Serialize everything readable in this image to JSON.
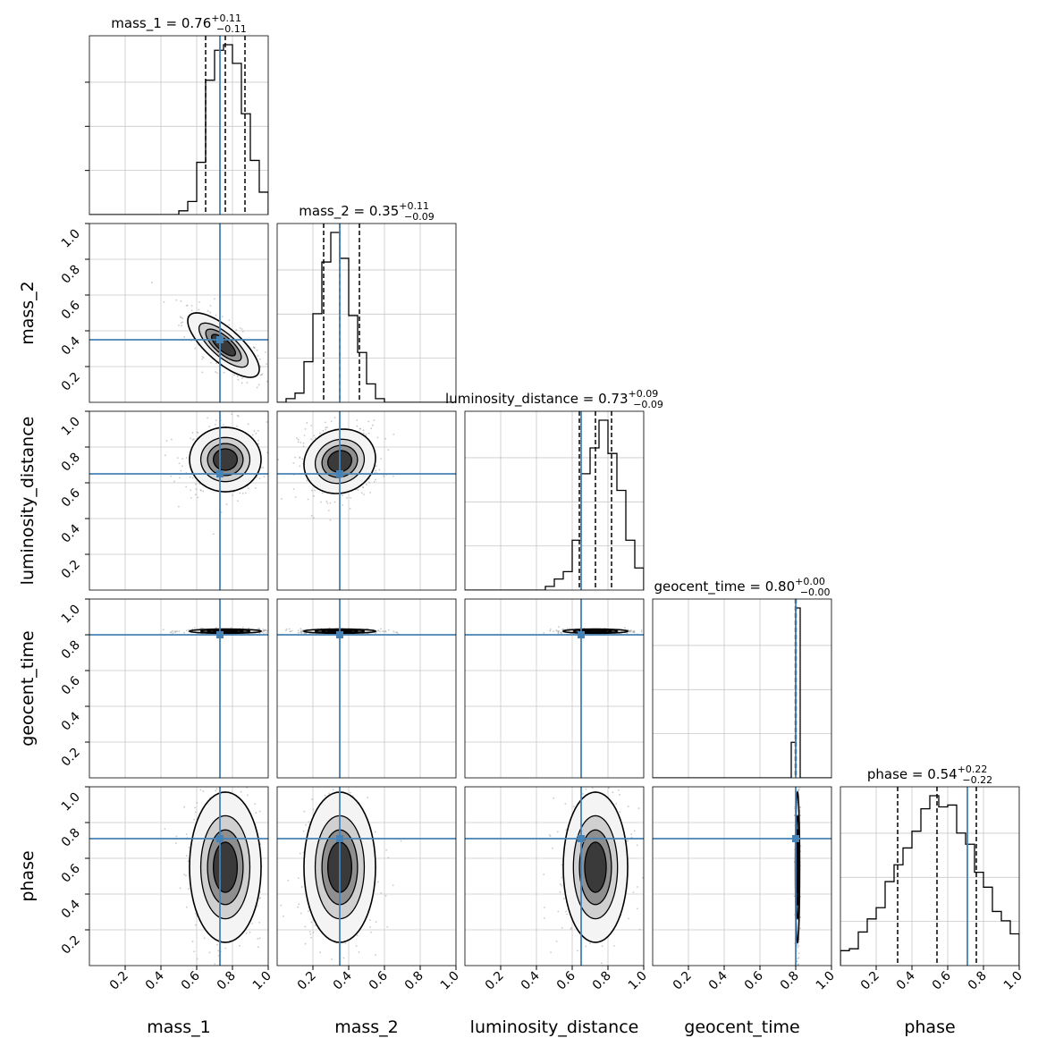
{
  "chart_data": {
    "type": "corner",
    "grid": true,
    "parameters": [
      "mass_1",
      "mass_2",
      "luminosity_distance",
      "geocent_time",
      "phase"
    ],
    "axis_range": [
      0,
      1
    ],
    "tick_values": [
      0.2,
      0.4,
      0.6,
      0.8,
      1.0
    ],
    "x_tick_labels": [
      "0.2",
      "0.4",
      "0.6",
      "0.8",
      "1.0"
    ],
    "y_tick_labels": [
      "0.2",
      "0.4",
      "0.6",
      "0.8",
      "1.0"
    ],
    "truths": [
      0.73,
      0.35,
      0.65,
      0.8,
      0.71
    ],
    "truth_color": "#4682b4",
    "titles": [
      {
        "param": "mass_1",
        "prefix": "mass_1 = ",
        "value": "0.76",
        "plus": "+0.11",
        "minus": "−0.11",
        "quantiles": [
          0.65,
          0.76,
          0.87
        ]
      },
      {
        "param": "mass_2",
        "prefix": "mass_2 = ",
        "value": "0.35",
        "plus": "+0.11",
        "minus": "−0.09",
        "quantiles": [
          0.26,
          0.35,
          0.46
        ]
      },
      {
        "param": "luminosity_distance",
        "prefix": "luminosity_distance = ",
        "value": "0.73",
        "plus": "+0.09",
        "minus": "−0.09",
        "quantiles": [
          0.64,
          0.73,
          0.82
        ]
      },
      {
        "param": "geocent_time",
        "prefix": "geocent_time = ",
        "value": "0.80",
        "plus": "+0.00",
        "minus": "−0.00",
        "quantiles": [
          0.798,
          0.8,
          0.802
        ]
      },
      {
        "param": "phase",
        "prefix": "phase = ",
        "value": "0.54",
        "plus": "+0.22",
        "minus": "−0.22",
        "quantiles": [
          0.32,
          0.54,
          0.76
        ]
      }
    ],
    "histograms": [
      {
        "param": "mass_1",
        "bin_edges": [
          0.0,
          0.05,
          0.1,
          0.15,
          0.2,
          0.25,
          0.3,
          0.35,
          0.4,
          0.45,
          0.5,
          0.55,
          0.6,
          0.65,
          0.7,
          0.75,
          0.8,
          0.85,
          0.9,
          0.95,
          1.0
        ],
        "counts": [
          0,
          0,
          0,
          0,
          0,
          0,
          0,
          0,
          0,
          0,
          0.02,
          0.07,
          0.28,
          0.72,
          0.88,
          0.91,
          0.81,
          0.54,
          0.29,
          0.12
        ]
      },
      {
        "param": "mass_2",
        "bin_edges": [
          0.0,
          0.05,
          0.1,
          0.15,
          0.2,
          0.25,
          0.3,
          0.35,
          0.4,
          0.45,
          0.5,
          0.55,
          0.6,
          0.65,
          0.7,
          0.75,
          0.8,
          0.85,
          0.9,
          0.95,
          1.0
        ],
        "counts": [
          0,
          0.02,
          0.05,
          0.22,
          0.48,
          0.76,
          0.92,
          0.78,
          0.47,
          0.27,
          0.1,
          0.02,
          0,
          0,
          0,
          0,
          0,
          0,
          0,
          0
        ]
      },
      {
        "param": "luminosity_distance",
        "bin_edges": [
          0.0,
          0.05,
          0.1,
          0.15,
          0.2,
          0.25,
          0.3,
          0.35,
          0.4,
          0.45,
          0.5,
          0.55,
          0.6,
          0.65,
          0.7,
          0.75,
          0.8,
          0.85,
          0.9,
          0.95,
          1.0
        ],
        "counts": [
          0,
          0,
          0,
          0,
          0,
          0,
          0,
          0,
          0,
          0.02,
          0.06,
          0.1,
          0.27,
          0.63,
          0.77,
          0.92,
          0.74,
          0.54,
          0.27,
          0.12
        ]
      },
      {
        "param": "geocent_time",
        "bin_edges": [
          0.75,
          0.775,
          0.8,
          0.825,
          0.85
        ],
        "counts": [
          0,
          0.18,
          0.86,
          0
        ]
      },
      {
        "param": "phase",
        "bin_edges": [
          0.0,
          0.05,
          0.1,
          0.15,
          0.2,
          0.25,
          0.3,
          0.35,
          0.4,
          0.45,
          0.5,
          0.55,
          0.6,
          0.65,
          0.7,
          0.75,
          0.8,
          0.85,
          0.9,
          0.95,
          1.0
        ],
        "counts": [
          0.08,
          0.09,
          0.18,
          0.25,
          0.31,
          0.45,
          0.54,
          0.63,
          0.72,
          0.84,
          0.91,
          0.85,
          0.86,
          0.71,
          0.65,
          0.5,
          0.42,
          0.29,
          0.24,
          0.17
        ]
      }
    ],
    "correlations": [
      {
        "row": 1,
        "col": 0,
        "center": [
          0.75,
          0.32
        ],
        "sigma": [
          0.1,
          0.09
        ],
        "rho": -0.75
      },
      {
        "row": 2,
        "col": 0,
        "center": [
          0.76,
          0.73
        ],
        "sigma": [
          0.1,
          0.09
        ],
        "rho": 0.0
      },
      {
        "row": 2,
        "col": 1,
        "center": [
          0.35,
          0.72
        ],
        "sigma": [
          0.1,
          0.09
        ],
        "rho": 0.1
      },
      {
        "row": 3,
        "col": 0,
        "center": [
          0.76,
          0.82
        ],
        "sigma": [
          0.1,
          0.006
        ],
        "rho": 0.0
      },
      {
        "row": 3,
        "col": 1,
        "center": [
          0.35,
          0.82
        ],
        "sigma": [
          0.1,
          0.006
        ],
        "rho": 0.0
      },
      {
        "row": 3,
        "col": 2,
        "center": [
          0.73,
          0.82
        ],
        "sigma": [
          0.09,
          0.006
        ],
        "rho": 0.0
      },
      {
        "row": 4,
        "col": 0,
        "center": [
          0.76,
          0.55
        ],
        "sigma": [
          0.1,
          0.21
        ],
        "rho": 0.0
      },
      {
        "row": 4,
        "col": 1,
        "center": [
          0.35,
          0.55
        ],
        "sigma": [
          0.1,
          0.21
        ],
        "rho": 0.0
      },
      {
        "row": 4,
        "col": 2,
        "center": [
          0.73,
          0.55
        ],
        "sigma": [
          0.09,
          0.21
        ],
        "rho": 0.0
      },
      {
        "row": 4,
        "col": 3,
        "center": [
          0.81,
          0.55
        ],
        "sigma": [
          0.006,
          0.21
        ],
        "rho": 0.0
      }
    ]
  }
}
